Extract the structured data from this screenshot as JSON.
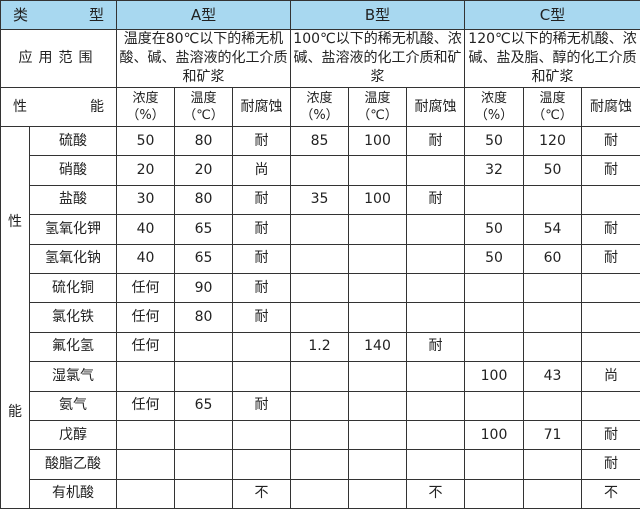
{
  "header": {
    "type_label": [
      "类",
      "型"
    ],
    "types": [
      "A型",
      "B型",
      "C型"
    ]
  },
  "application": {
    "label": "应用范围",
    "A": "温度在80℃以下的稀无机酸、碱、盐溶液的化工介质和矿浆",
    "B": "100℃以下的稀无机酸、浓碱、盐溶液的化工介质和矿浆",
    "C": "120℃以下的稀无机酸、浓碱、盐及脂、醇的化工介质和矿浆"
  },
  "performance": {
    "label": [
      "性",
      "能"
    ],
    "cols": {
      "conc": "浓度",
      "conc_unit": "（%）",
      "temp": "温度",
      "temp_unit": "（℃）",
      "resist": "耐腐蚀"
    }
  },
  "side_label": [
    "性",
    "能"
  ],
  "rows": [
    {
      "name": "硫酸",
      "A": [
        "50",
        "80",
        "耐"
      ],
      "B": [
        "85",
        "100",
        "耐"
      ],
      "C": [
        "50",
        "120",
        "耐"
      ]
    },
    {
      "name": "硝酸",
      "A": [
        "20",
        "20",
        "尚"
      ],
      "B": [
        "",
        "",
        ""
      ],
      "C": [
        "32",
        "50",
        "耐"
      ]
    },
    {
      "name": "盐酸",
      "A": [
        "30",
        "80",
        "耐"
      ],
      "B": [
        "35",
        "100",
        "耐"
      ],
      "C": [
        "",
        "",
        ""
      ]
    },
    {
      "name": "氢氧化钾",
      "A": [
        "40",
        "65",
        "耐"
      ],
      "B": [
        "",
        "",
        ""
      ],
      "C": [
        "50",
        "54",
        "耐"
      ]
    },
    {
      "name": "氢氧化钠",
      "A": [
        "40",
        "65",
        "耐"
      ],
      "B": [
        "",
        "",
        ""
      ],
      "C": [
        "50",
        "60",
        "耐"
      ]
    },
    {
      "name": "硫化铜",
      "A": [
        "任何",
        "90",
        "耐"
      ],
      "B": [
        "",
        "",
        ""
      ],
      "C": [
        "",
        "",
        ""
      ]
    },
    {
      "name": "氯化铁",
      "A": [
        "任何",
        "80",
        "耐"
      ],
      "B": [
        "",
        "",
        ""
      ],
      "C": [
        "",
        "",
        ""
      ]
    },
    {
      "name": "氟化氢",
      "A": [
        "任何",
        "",
        ""
      ],
      "B": [
        "1.2",
        "140",
        "耐"
      ],
      "C": [
        "",
        "",
        ""
      ]
    },
    {
      "name": "湿氯气",
      "A": [
        "",
        "",
        ""
      ],
      "B": [
        "",
        "",
        ""
      ],
      "C": [
        "100",
        "43",
        "尚"
      ]
    },
    {
      "name": "氨气",
      "A": [
        "任何",
        "65",
        "耐"
      ],
      "B": [
        "",
        "",
        ""
      ],
      "C": [
        "",
        "",
        ""
      ]
    },
    {
      "name": "戊醇",
      "A": [
        "",
        "",
        ""
      ],
      "B": [
        "",
        "",
        ""
      ],
      "C": [
        "100",
        "71",
        "耐"
      ]
    },
    {
      "name": "酸脂乙酸",
      "A": [
        "",
        "",
        ""
      ],
      "B": [
        "",
        "",
        ""
      ],
      "C": [
        "",
        "",
        "耐"
      ]
    },
    {
      "name": "有机酸",
      "A": [
        "",
        "",
        "不"
      ],
      "B": [
        "",
        "",
        "不"
      ],
      "C": [
        "",
        "",
        "不"
      ]
    }
  ]
}
